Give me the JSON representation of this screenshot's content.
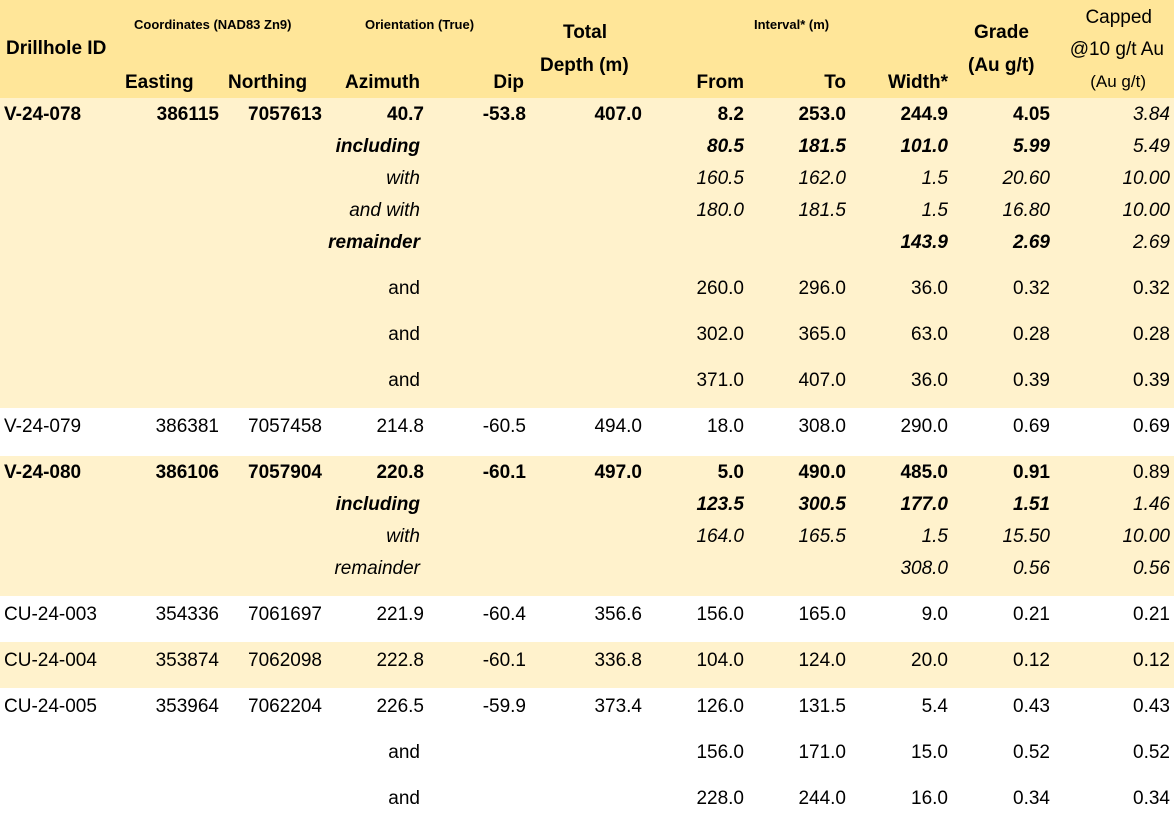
{
  "colors": {
    "shade": "#FFF2CC",
    "header": "#FFE699",
    "white": "#FFFFFF"
  },
  "header": {
    "drillhole_id": "Drillhole ID",
    "coordinates": "Coordinates (NAD83 Zn9)",
    "orientation": "Orientation (True)",
    "total": "Total",
    "depth": "Depth (m)",
    "interval": "Interval* (m)",
    "grade": "Grade",
    "grade_unit": "(Au g/t)",
    "capped_1": "Capped",
    "capped_2": "@10 g/t Au",
    "capped_3": "(Au g/t)",
    "easting": "Easting",
    "northing": "Northing",
    "azimuth": "Azimuth",
    "dip": "Dip",
    "from": "From",
    "to": "To",
    "width": "Width*"
  },
  "rows": [
    {
      "id": "V-24-078",
      "easting": "386115",
      "northing": "7057613",
      "azimuth": "40.7",
      "dip": "-53.8",
      "depth": "407.0",
      "from": "8.2",
      "to": "253.0",
      "width": "244.9",
      "grade": "4.05",
      "capped": "3.84"
    },
    {
      "label": "including",
      "from": "80.5",
      "to": "181.5",
      "width": "101.0",
      "grade": "5.99",
      "capped": "5.49"
    },
    {
      "label": "with",
      "from": "160.5",
      "to": "162.0",
      "width": "1.5",
      "grade": "20.60",
      "capped": "10.00"
    },
    {
      "label": "and with",
      "from": "180.0",
      "to": "181.5",
      "width": "1.5",
      "grade": "16.80",
      "capped": "10.00"
    },
    {
      "label": "remainder",
      "width": "143.9",
      "grade": "2.69",
      "capped": "2.69"
    },
    {
      "label": "and",
      "from": "260.0",
      "to": "296.0",
      "width": "36.0",
      "grade": "0.32",
      "capped": "0.32"
    },
    {
      "label": "and",
      "from": "302.0",
      "to": "365.0",
      "width": "63.0",
      "grade": "0.28",
      "capped": "0.28"
    },
    {
      "label": "and",
      "from": "371.0",
      "to": "407.0",
      "width": "36.0",
      "grade": "0.39",
      "capped": "0.39"
    },
    {
      "id": "V-24-079",
      "easting": "386381",
      "northing": "7057458",
      "azimuth": "214.8",
      "dip": "-60.5",
      "depth": "494.0",
      "from": "18.0",
      "to": "308.0",
      "width": "290.0",
      "grade": "0.69",
      "capped": "0.69"
    },
    {
      "id": "V-24-080",
      "easting": "386106",
      "northing": "7057904",
      "azimuth": "220.8",
      "dip": "-60.1",
      "depth": "497.0",
      "from": "5.0",
      "to": "490.0",
      "width": "485.0",
      "grade": "0.91",
      "capped": "0.89"
    },
    {
      "label": "including",
      "from": "123.5",
      "to": "300.5",
      "width": "177.0",
      "grade": "1.51",
      "capped": "1.46"
    },
    {
      "label": "with",
      "from": "164.0",
      "to": "165.5",
      "width": "1.5",
      "grade": "15.50",
      "capped": "10.00"
    },
    {
      "label": "remainder",
      "width": "308.0",
      "grade": "0.56",
      "capped": "0.56"
    },
    {
      "id": "CU-24-003",
      "easting": "354336",
      "northing": "7061697",
      "azimuth": "221.9",
      "dip": "-60.4",
      "depth": "356.6",
      "from": "156.0",
      "to": "165.0",
      "width": "9.0",
      "grade": "0.21",
      "capped": "0.21"
    },
    {
      "id": "CU-24-004",
      "easting": "353874",
      "northing": "7062098",
      "azimuth": "222.8",
      "dip": "-60.1",
      "depth": "336.8",
      "from": "104.0",
      "to": "124.0",
      "width": "20.0",
      "grade": "0.12",
      "capped": "0.12"
    },
    {
      "id": "CU-24-005",
      "easting": "353964",
      "northing": "7062204",
      "azimuth": "226.5",
      "dip": "-59.9",
      "depth": "373.4",
      "from": "126.0",
      "to": "131.5",
      "width": "5.4",
      "grade": "0.43",
      "capped": "0.43"
    },
    {
      "label": "and",
      "from": "156.0",
      "to": "171.0",
      "width": "15.0",
      "grade": "0.52",
      "capped": "0.52"
    },
    {
      "label": "and",
      "from": "228.0",
      "to": "244.0",
      "width": "16.0",
      "grade": "0.34",
      "capped": "0.34"
    }
  ]
}
